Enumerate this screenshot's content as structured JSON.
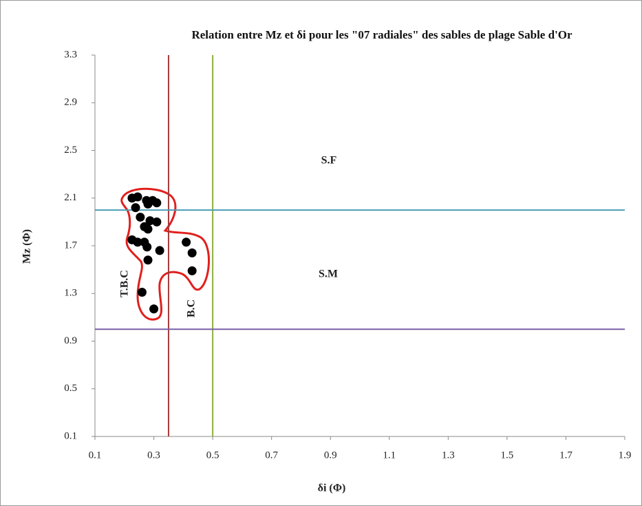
{
  "chart_data": {
    "type": "scatter",
    "title": "Relation entre  Mz et δi pour  les \"07 radiales\"  des sables  de plage Sable d'Or",
    "x_label": "δi (Φ)",
    "y_label": "Mz (Φ)",
    "annotations": [
      "S.F",
      "S.M",
      "T.B.C",
      "B.C"
    ],
    "xlim": [
      0.1,
      1.9
    ],
    "ylim": [
      0.1,
      3.3
    ],
    "xticks": [
      0.1,
      0.3,
      0.5,
      0.7,
      0.9,
      1.1,
      1.3,
      1.5,
      1.7,
      1.9
    ],
    "yticks": [
      0.1,
      0.5,
      0.9,
      1.3,
      1.7,
      2.1,
      2.5,
      2.9,
      3.3
    ],
    "color": "#000000",
    "reference_lines": [
      {
        "axis": "x",
        "value": 0.35,
        "color": "#a3383a"
      },
      {
        "axis": "x",
        "value": 0.5,
        "color": "#8db03c"
      },
      {
        "axis": "y",
        "value": 2.0,
        "color": "#4a9db5"
      },
      {
        "axis": "y",
        "value": 1.0,
        "color": "#7a5ea8"
      }
    ],
    "x": [
      0.226,
      0.245,
      0.275,
      0.296,
      0.31,
      0.238,
      0.28,
      0.254,
      0.287,
      0.31,
      0.268,
      0.28,
      0.226,
      0.245,
      0.268,
      0.277,
      0.32,
      0.28,
      0.41,
      0.43,
      0.43,
      0.26,
      0.3
    ],
    "values": [
      2.1,
      2.11,
      2.08,
      2.08,
      2.06,
      2.02,
      2.05,
      1.94,
      1.91,
      1.9,
      1.86,
      1.84,
      1.75,
      1.73,
      1.73,
      1.69,
      1.66,
      1.58,
      1.73,
      1.64,
      1.49,
      1.31,
      1.17
    ]
  }
}
